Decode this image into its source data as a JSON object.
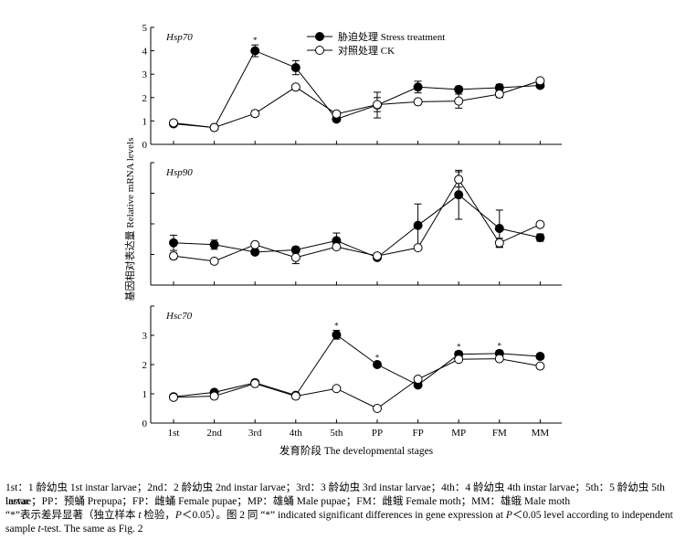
{
  "figure": {
    "ylabel": "基因相对表达量 Relative mRNA levels",
    "xlabel": "发育阶段 The developmental stages",
    "legend": {
      "stress": "胁迫处理 Stress treatment",
      "ck": "对照处理 CK"
    },
    "star": "*"
  },
  "caption": {
    "line1": "1st：1 龄幼虫 1st instar larvae；2nd：2 龄幼虫 2nd instar larvae；3rd：3 龄幼虫 3rd instar larvae；4th：4 龄幼虫 4th instar larvae；5th：5 龄幼虫 5th instar",
    "line2": "larvae；PP：预蛹 Prepupa；FP：雌蛹 Female pupae；MP：雄蛹 Male pupae；FM：雌蛾 Female moth；MM：雄蛾 Male moth",
    "line3a": "“*”表示差异显著（独立样本 ",
    "line3_t": "t",
    "line3b": " 检验，",
    "line3_p": "P",
    "line3c": "＜0.05）。图 2 同 “*” indicated significant differences in gene expression at ",
    "line3_p2": "P",
    "line3d": "＜0.05 level according to independent",
    "line4a": "sample ",
    "line4_t": "t",
    "line4b": "-test. The same as Fig. 2"
  },
  "chart_data": [
    {
      "type": "line",
      "title": "Hsp70",
      "categories": [
        "1st",
        "2nd",
        "3rd",
        "4th",
        "5th",
        "PP",
        "FP",
        "MP",
        "FM",
        "MM"
      ],
      "ylim": [
        0,
        5
      ],
      "yticks": [
        "0",
        "1",
        "2",
        "3",
        "4",
        "5"
      ],
      "series": [
        {
          "name": "胁迫处理 Stress treatment",
          "marker": "filled",
          "values": [
            0.88,
            0.72,
            4.0,
            3.28,
            1.08,
            1.68,
            2.45,
            2.35,
            2.42,
            2.52
          ],
          "errors": [
            0.08,
            0.05,
            0.25,
            0.3,
            0.08,
            0.55,
            0.25,
            0.12,
            0.15,
            0.1
          ]
        },
        {
          "name": "对照处理 CK",
          "marker": "open",
          "values": [
            0.92,
            0.72,
            1.32,
            2.45,
            1.3,
            1.7,
            1.82,
            1.85,
            2.15,
            2.72
          ],
          "errors": [
            0.1,
            0.05,
            0.12,
            0.05,
            0.1,
            0.3,
            0.1,
            0.3,
            0.15,
            0.05
          ]
        }
      ],
      "significant": [
        2
      ]
    },
    {
      "type": "line",
      "title": "Hsp90",
      "categories": [
        "1st",
        "2nd",
        "3rd",
        "4th",
        "5th",
        "PP",
        "FP",
        "MP",
        "FM",
        "MM"
      ],
      "ylim": [
        0,
        4
      ],
      "yticks": [],
      "series": [
        {
          "name": "胁迫处理 Stress treatment",
          "marker": "filled",
          "values": [
            1.38,
            1.32,
            1.08,
            1.15,
            1.45,
            0.9,
            1.95,
            2.95,
            1.85,
            1.55
          ],
          "errors": [
            0.25,
            0.15,
            0.08,
            0.1,
            0.25,
            0.08,
            0.7,
            0.8,
            0.6,
            0.12
          ]
        },
        {
          "name": "对照处理 CK",
          "marker": "open",
          "values": [
            0.95,
            0.78,
            1.32,
            0.9,
            1.25,
            0.95,
            1.22,
            3.45,
            1.38,
            1.98
          ],
          "errors": [
            0.1,
            0.05,
            0.05,
            0.2,
            0.08,
            0.08,
            0.05,
            0.25,
            0.15,
            0.05
          ]
        }
      ],
      "significant": []
    },
    {
      "type": "line",
      "title": "Hsc70",
      "categories": [
        "1st",
        "2nd",
        "3rd",
        "4th",
        "5th",
        "PP",
        "FP",
        "MP",
        "FM",
        "MM"
      ],
      "ylim": [
        0,
        4
      ],
      "yticks": [
        "0",
        "1",
        "2",
        "3"
      ],
      "series": [
        {
          "name": "胁迫处理 Stress treatment",
          "marker": "filled",
          "values": [
            0.9,
            1.05,
            1.38,
            0.95,
            3.02,
            2.0,
            1.3,
            2.35,
            2.38,
            2.28
          ],
          "errors": [
            0.05,
            0.05,
            0.05,
            0.05,
            0.15,
            0.08,
            0.05,
            0.1,
            0.1,
            0.08
          ]
        },
        {
          "name": "对照处理 CK",
          "marker": "open",
          "values": [
            0.88,
            0.92,
            1.35,
            0.92,
            1.18,
            0.5,
            1.5,
            2.18,
            2.2,
            1.95
          ],
          "errors": [
            0.05,
            0.05,
            0.05,
            0.05,
            0.05,
            0.05,
            0.05,
            0.05,
            0.05,
            0.05
          ]
        }
      ],
      "significant": [
        4,
        5,
        7,
        8
      ]
    }
  ]
}
